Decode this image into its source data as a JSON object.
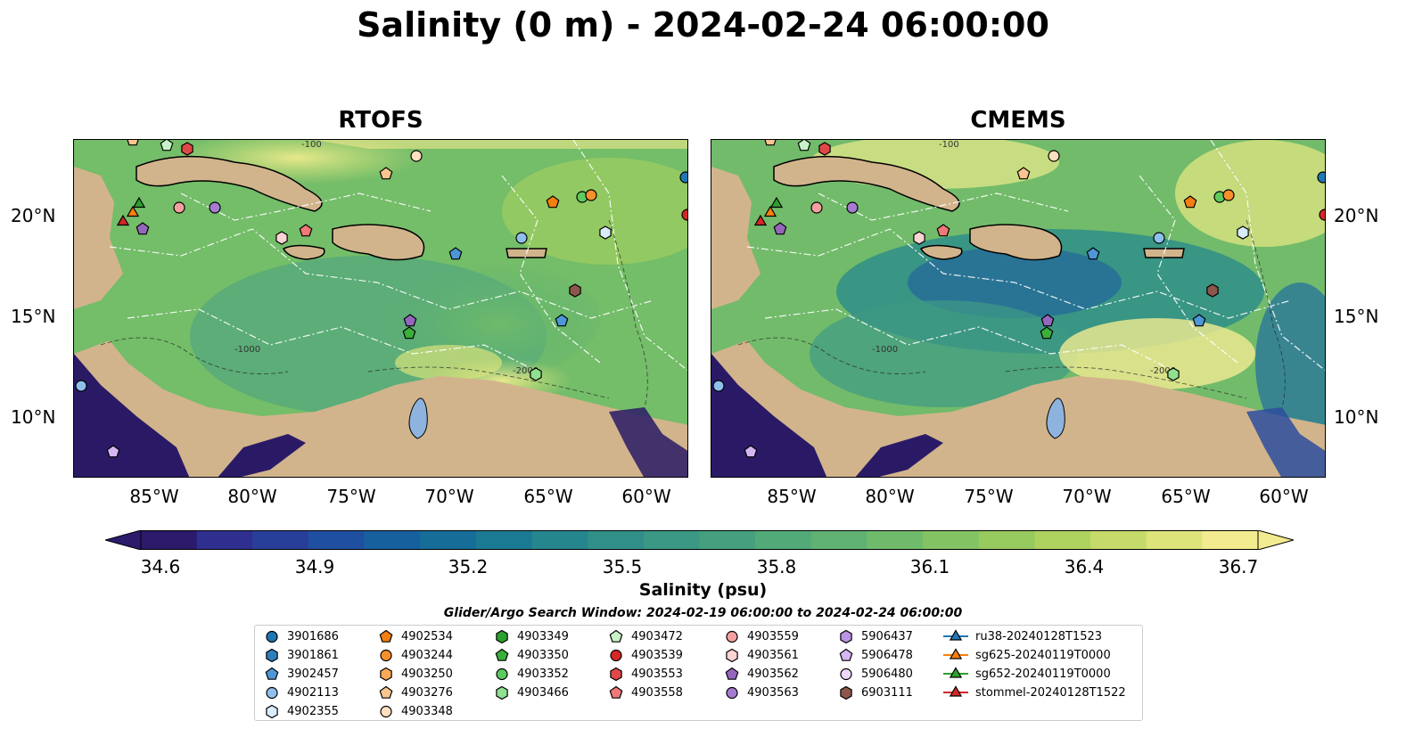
{
  "title": "Salinity (0 m) - 2024-02-24 06:00:00",
  "panels": [
    {
      "title": "RTOFS"
    },
    {
      "title": "CMEMS"
    }
  ],
  "lat_labels": [
    "20°N",
    "15°N",
    "10°N"
  ],
  "lon_labels": [
    "85°W",
    "80°W",
    "75°W",
    "70°W",
    "65°W",
    "60°W"
  ],
  "colorbar": {
    "ticks": [
      "34.6",
      "34.9",
      "35.2",
      "35.5",
      "35.8",
      "36.1",
      "36.4",
      "36.7"
    ],
    "label": "Salinity (psu)",
    "colors": [
      "#2c1a6b",
      "#2e2f8f",
      "#283f9a",
      "#1f4fa0",
      "#17609e",
      "#166d98",
      "#1b7a93",
      "#26868e",
      "#318f89",
      "#3b9884",
      "#46a07f",
      "#52aa79",
      "#60b273",
      "#70bb6b",
      "#83c364",
      "#97ca5f",
      "#aed25e",
      "#c5da68",
      "#dde47a",
      "#f3eb8f"
    ]
  },
  "search_window": "Glider/Argo Search Window: 2024-02-19 06:00:00 to 2024-02-24 06:00:00",
  "contour_labels": [
    "-100",
    "-1000",
    "-2000"
  ],
  "legend": [
    {
      "label": "3901686",
      "marker": "circle",
      "color": "#1f77b4"
    },
    {
      "label": "3901861",
      "marker": "hexagon",
      "color": "#2e7ebc"
    },
    {
      "label": "3902457",
      "marker": "pentagon",
      "color": "#4d97d6"
    },
    {
      "label": "4902113",
      "marker": "circle",
      "color": "#8fc0ec"
    },
    {
      "label": "4902355",
      "marker": "hexagon",
      "color": "#d8ecfa"
    },
    {
      "label": "4902534",
      "marker": "pentagon",
      "color": "#f57f0e"
    },
    {
      "label": "4903244",
      "marker": "circle",
      "color": "#f7902b"
    },
    {
      "label": "4903250",
      "marker": "hexagon",
      "color": "#fba957"
    },
    {
      "label": "4903276",
      "marker": "pentagon",
      "color": "#fcc590"
    },
    {
      "label": "4903348",
      "marker": "circle",
      "color": "#fde0c0"
    },
    {
      "label": "4903349",
      "marker": "hexagon",
      "color": "#2ca02c"
    },
    {
      "label": "4903350",
      "marker": "pentagon",
      "color": "#3aaf3a"
    },
    {
      "label": "4903352",
      "marker": "circle",
      "color": "#5fc95f"
    },
    {
      "label": "4903466",
      "marker": "hexagon",
      "color": "#8fe08f"
    },
    {
      "label": "4903472",
      "marker": "pentagon",
      "color": "#c8f2c8"
    },
    {
      "label": "4903539",
      "marker": "circle",
      "color": "#d62728"
    },
    {
      "label": "4903553",
      "marker": "hexagon",
      "color": "#e04848"
    },
    {
      "label": "4903558",
      "marker": "pentagon",
      "color": "#f07878"
    },
    {
      "label": "4903559",
      "marker": "circle",
      "color": "#f5a0a0"
    },
    {
      "label": "4903561",
      "marker": "hexagon",
      "color": "#fbd3d3"
    },
    {
      "label": "4903562",
      "marker": "pentagon",
      "color": "#9467bd"
    },
    {
      "label": "4903563",
      "marker": "circle",
      "color": "#a77bd0"
    },
    {
      "label": "5906437",
      "marker": "hexagon",
      "color": "#bb93e2"
    },
    {
      "label": "5906478",
      "marker": "pentagon",
      "color": "#d4b6f2"
    },
    {
      "label": "5906480",
      "marker": "circle",
      "color": "#edd9fb"
    },
    {
      "label": "6903111",
      "marker": "hexagon",
      "color": "#8c564b"
    },
    {
      "label": "ru38-20240128T1523",
      "marker": "triangle-line",
      "color": "#1f77b4"
    },
    {
      "label": "sg625-20240119T0000",
      "marker": "triangle-line",
      "color": "#ff7f0e"
    },
    {
      "label": "sg652-20240119T0000",
      "marker": "triangle-line",
      "color": "#2ca02c"
    },
    {
      "label": "stommel-20240128T1522",
      "marker": "triangle-line",
      "color": "#d62728"
    }
  ]
}
